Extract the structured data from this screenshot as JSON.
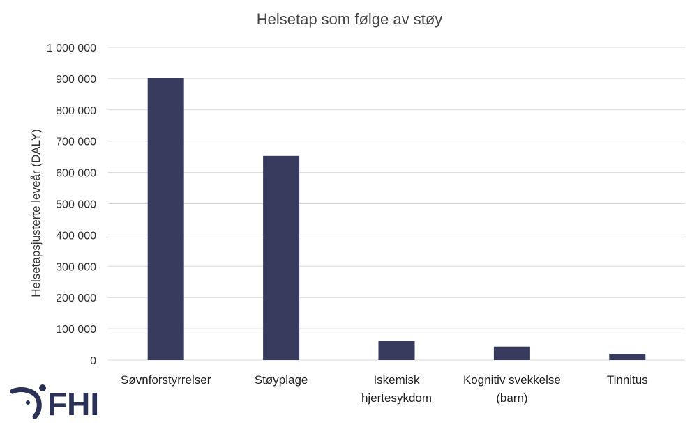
{
  "chart_data": {
    "type": "bar",
    "title": "Helsetap som følge av støy",
    "ylabel": "Helsetapsjusterte  leveår (DALY)",
    "xlabel": "",
    "ylim": [
      0,
      1000000
    ],
    "yticks": [
      0,
      100000,
      200000,
      300000,
      400000,
      500000,
      600000,
      700000,
      800000,
      900000,
      1000000
    ],
    "ytick_labels": [
      "0",
      "100 000",
      "200 000",
      "300 000",
      "400 000",
      "500 000",
      "600 000",
      "700 000",
      "800 000",
      "900 000",
      "1 000 000"
    ],
    "grid": true,
    "categories": [
      [
        "Søvnforstyrrelser"
      ],
      [
        "Støyplage"
      ],
      [
        "Iskemisk",
        "hjertesykdom"
      ],
      [
        "Kognitiv svekkelse",
        "(barn)"
      ],
      [
        "Tinnitus"
      ]
    ],
    "values": [
      902000,
      653000,
      61000,
      43000,
      20000
    ],
    "bar_color": "#383b5e"
  },
  "logo": {
    "text": "FHI",
    "color": "#2b3157"
  }
}
